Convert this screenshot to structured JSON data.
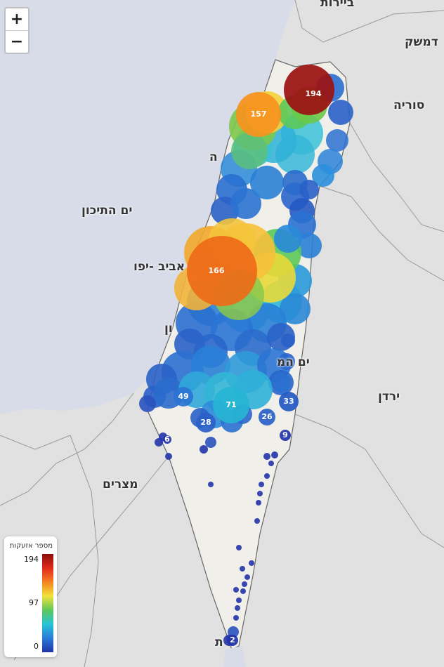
{
  "zoom": {
    "in_label": "+",
    "out_label": "−"
  },
  "places": {
    "beirut": "ביירות",
    "damascus": "דמשק",
    "syria": "סוריה",
    "haifa": "ה",
    "sea": "ים התיכון",
    "tel_aviv": "אביב -יפו",
    "ashdod": "ון",
    "dead_sea": "ים המ",
    "jordan": "ירדן",
    "egypt": "מצרים",
    "eilat": "ת"
  },
  "legend": {
    "title": "מספר אזעקות",
    "max": "194",
    "mid": "97",
    "min": "0"
  },
  "clusters": [
    {
      "count": "194",
      "color": "#9b1010"
    },
    {
      "count": "157",
      "color": "#f7931e"
    },
    {
      "count": "166",
      "color": "#ee6a18"
    },
    {
      "count": "49",
      "color": "#2a74d4"
    },
    {
      "count": "71",
      "color": "#27b4d4"
    },
    {
      "count": "33",
      "color": "#2259c2"
    },
    {
      "count": "28",
      "color": "#2a60c8"
    },
    {
      "count": "26",
      "color": "#2a62c8"
    },
    {
      "count": "9",
      "color": "#2233aa"
    },
    {
      "count": "6",
      "color": "#2233aa"
    },
    {
      "count": "2",
      "color": "#2233aa"
    }
  ],
  "colors": {
    "land": "#e0e0e0",
    "israel": "#f1efe9",
    "sea": "#d8dce8"
  }
}
